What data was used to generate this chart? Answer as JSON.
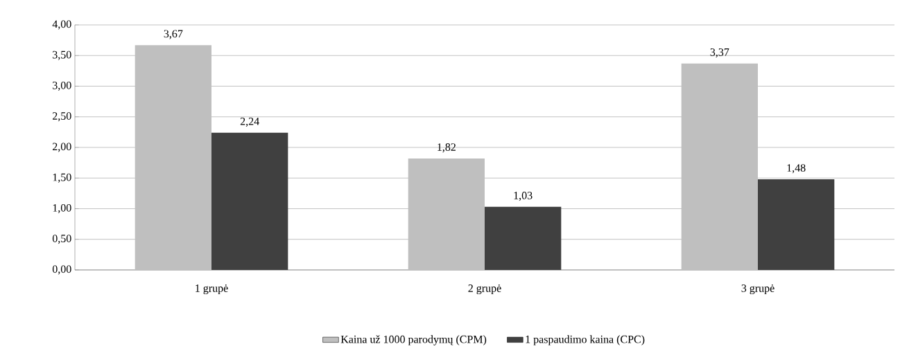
{
  "chart_data": {
    "type": "bar",
    "categories": [
      "1 grupė",
      "2 grupė",
      "3 grupė"
    ],
    "series": [
      {
        "name": "Kaina už 1000 parodymų (CPM)",
        "color": "#bfbfbf",
        "values": [
          3.67,
          1.82,
          3.37
        ],
        "value_labels": [
          "3,67",
          "1,82",
          "3,37"
        ]
      },
      {
        "name": "1 paspaudimo kaina (CPC)",
        "color": "#404040",
        "values": [
          2.24,
          1.03,
          1.48
        ],
        "value_labels": [
          "2,24",
          "1,03",
          "1,48"
        ]
      }
    ],
    "ylim": [
      0,
      4
    ],
    "yticks": [
      {
        "value": 0,
        "label": "0,00"
      },
      {
        "value": 0.5,
        "label": "0,50"
      },
      {
        "value": 1,
        "label": "1,00"
      },
      {
        "value": 1.5,
        "label": "1,50"
      },
      {
        "value": 2,
        "label": "2,00"
      },
      {
        "value": 2.5,
        "label": "2,50"
      },
      {
        "value": 3,
        "label": "3,00"
      },
      {
        "value": 3.5,
        "label": "3,50"
      },
      {
        "value": 4,
        "label": "4,00"
      }
    ],
    "grid": "y",
    "legend": "bottom"
  }
}
